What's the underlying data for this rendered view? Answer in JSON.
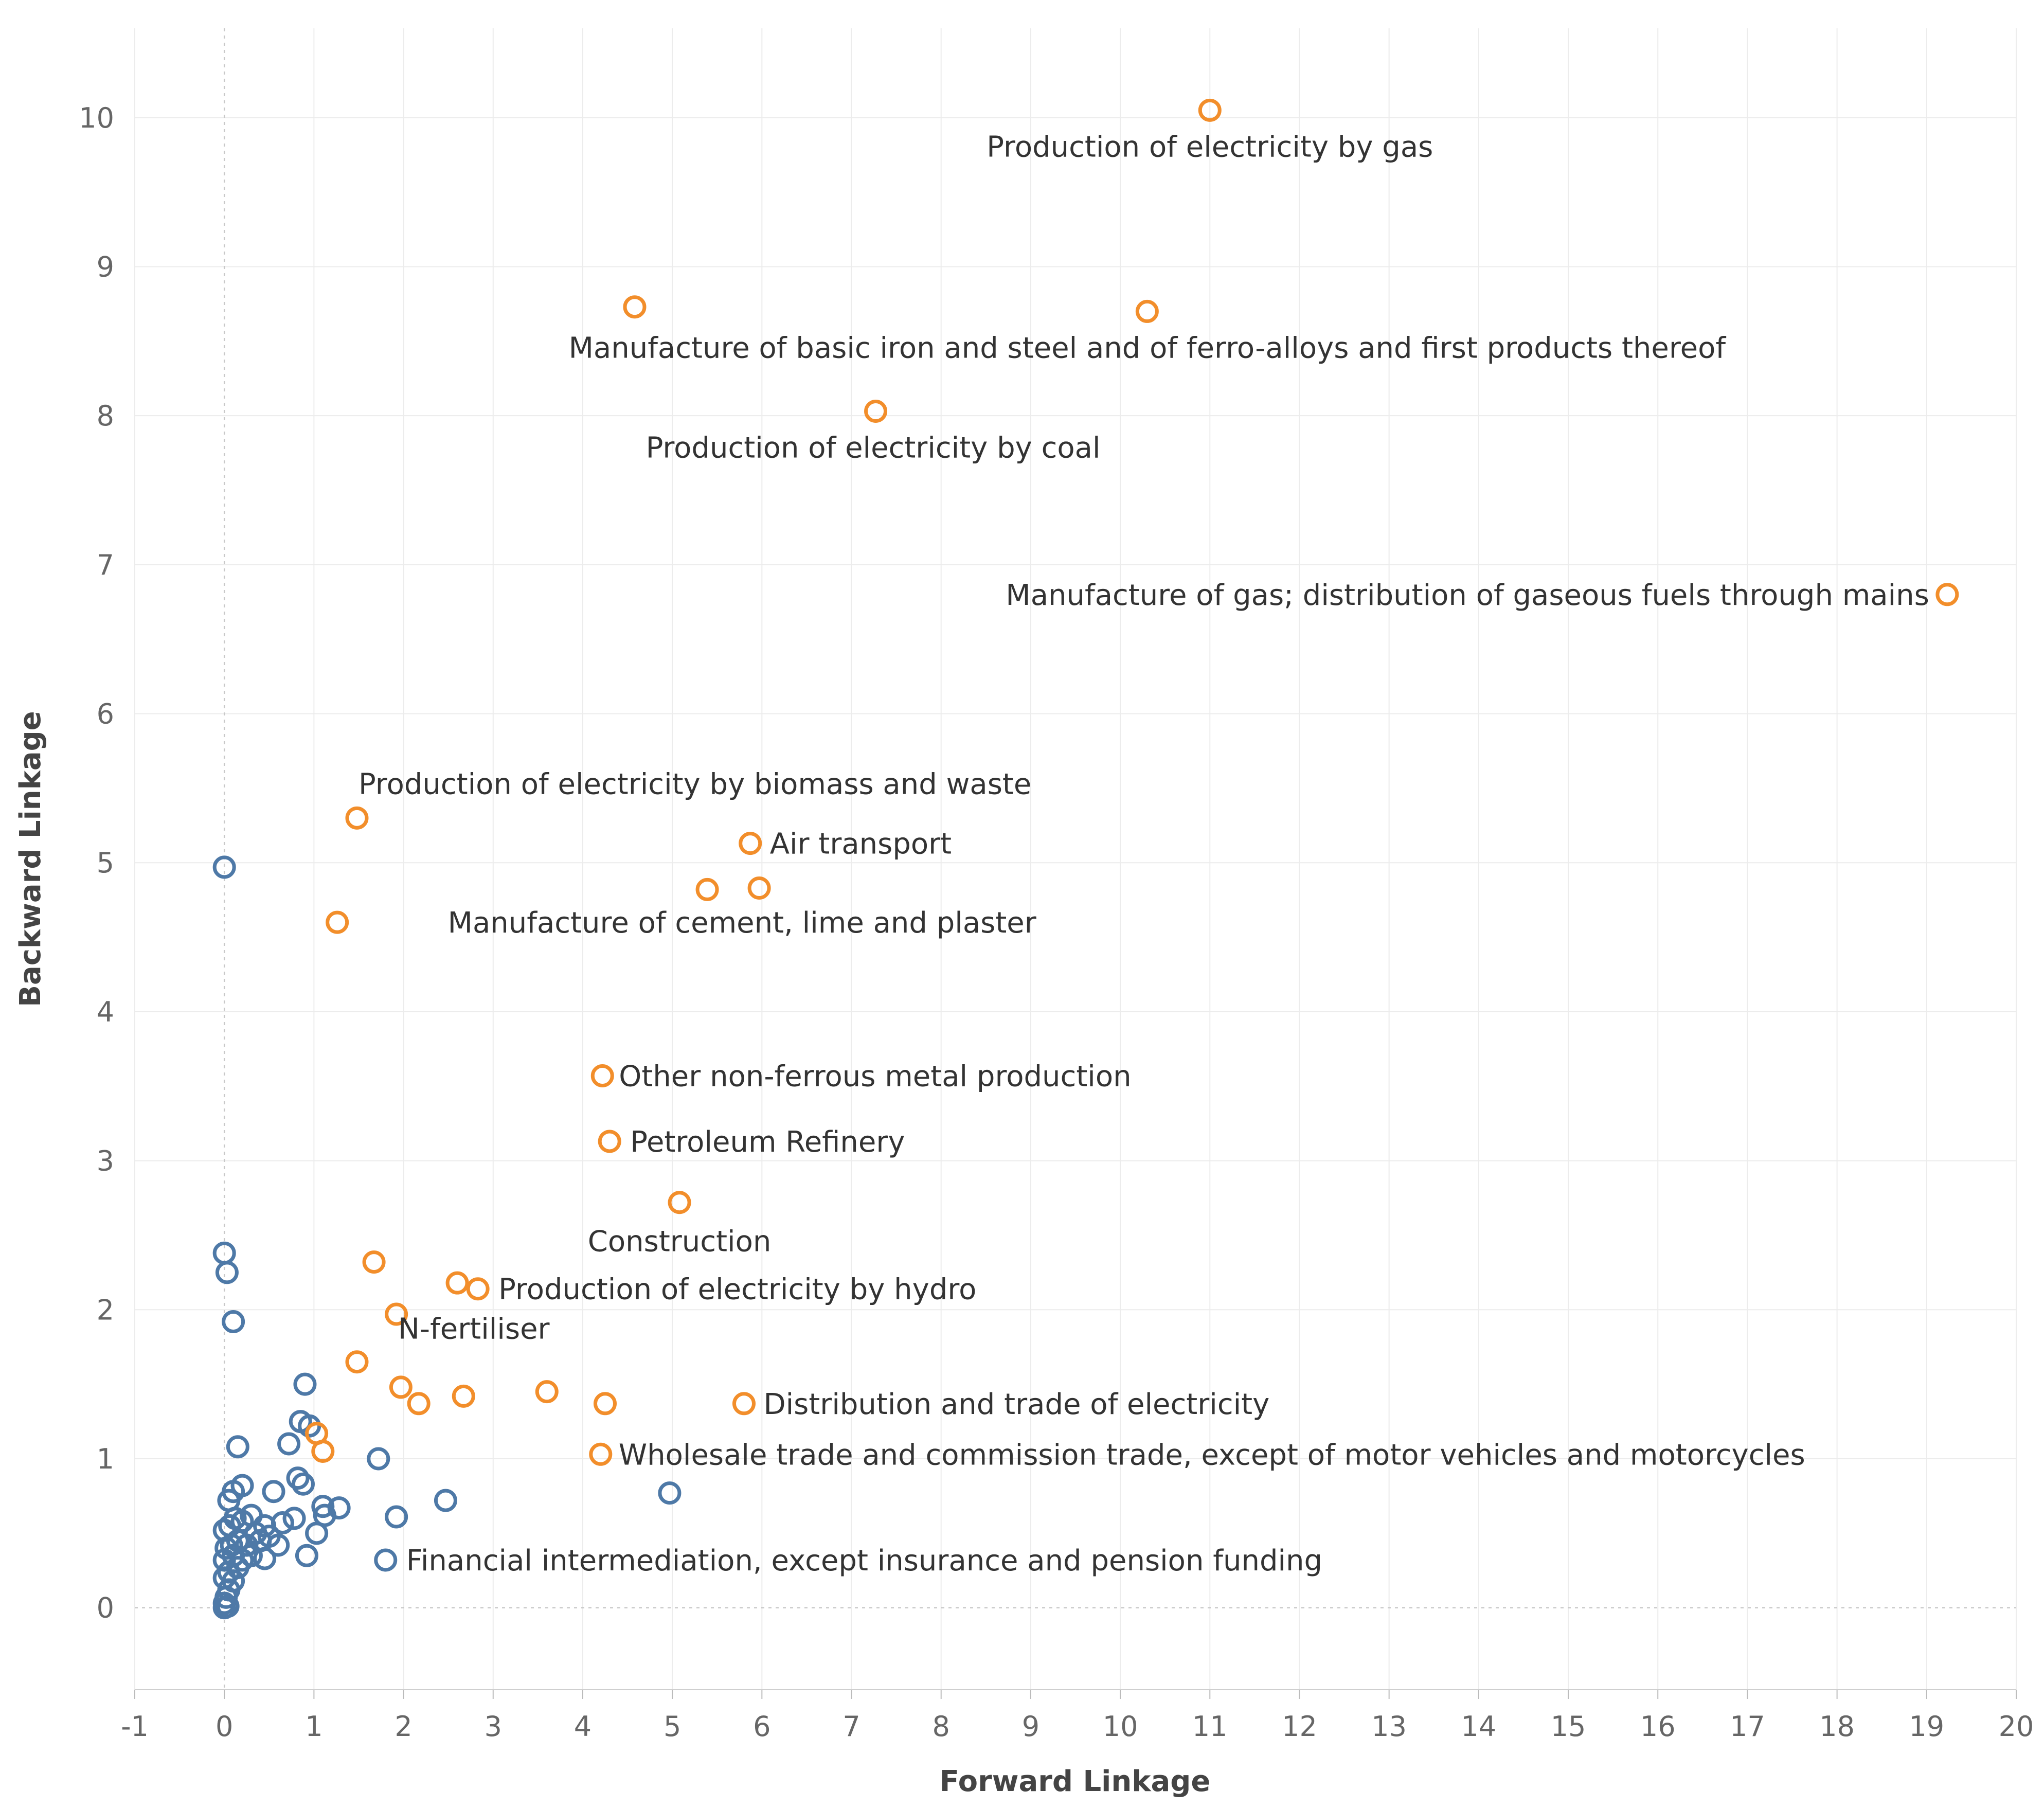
{
  "chart_data": {
    "type": "scatter",
    "title": "",
    "xlabel": "Forward Linkage",
    "ylabel": "Backward Linkage",
    "xlim": [
      -1,
      20
    ],
    "ylim": [
      -0.55,
      10.6
    ],
    "xticks": [
      -1,
      0,
      1,
      2,
      3,
      4,
      5,
      6,
      7,
      8,
      9,
      10,
      11,
      12,
      13,
      14,
      15,
      16,
      17,
      18,
      19,
      20
    ],
    "yticks": [
      0,
      1,
      2,
      3,
      4,
      5,
      6,
      7,
      8,
      9,
      10
    ],
    "grid": true,
    "colors": {
      "highlight": "#F28E2B",
      "other": "#4E79A7"
    },
    "series": [
      {
        "name": "highlighted",
        "color": "#F28E2B",
        "points": [
          {
            "x": 11.0,
            "y": 10.05,
            "label": "Production of electricity by gas"
          },
          {
            "x": 4.58,
            "y": 8.73,
            "label": ""
          },
          {
            "x": 10.3,
            "y": 8.7,
            "label": "Manufacture of basic iron and steel and of ferro-alloys and first products thereof"
          },
          {
            "x": 7.27,
            "y": 8.03,
            "label": "Production of electricity by coal"
          },
          {
            "x": 19.23,
            "y": 6.8,
            "label": "Manufacture of gas; distribution of gaseous fuels through mains"
          },
          {
            "x": 1.48,
            "y": 5.3,
            "label": "Production of electricity by biomass and waste"
          },
          {
            "x": 5.87,
            "y": 5.13,
            "label": "Air transport"
          },
          {
            "x": 5.39,
            "y": 4.82,
            "label": ""
          },
          {
            "x": 5.97,
            "y": 4.83,
            "label": ""
          },
          {
            "x": 1.26,
            "y": 4.6,
            "label": "Manufacture of cement, lime and plaster"
          },
          {
            "x": 4.22,
            "y": 3.57,
            "label": "Other non-ferrous metal production"
          },
          {
            "x": 4.3,
            "y": 3.13,
            "label": "Petroleum Refinery"
          },
          {
            "x": 5.08,
            "y": 2.72,
            "label": "Construction"
          },
          {
            "x": 1.67,
            "y": 2.32,
            "label": ""
          },
          {
            "x": 2.6,
            "y": 2.18,
            "label": ""
          },
          {
            "x": 2.83,
            "y": 2.14,
            "label": "Production of electricity by hydro"
          },
          {
            "x": 1.92,
            "y": 1.97,
            "label": ""
          },
          {
            "x": 1.48,
            "y": 1.65,
            "label": "N-fertiliser"
          },
          {
            "x": 1.97,
            "y": 1.48,
            "label": ""
          },
          {
            "x": 2.17,
            "y": 1.37,
            "label": ""
          },
          {
            "x": 2.67,
            "y": 1.42,
            "label": ""
          },
          {
            "x": 3.6,
            "y": 1.45,
            "label": ""
          },
          {
            "x": 4.25,
            "y": 1.37,
            "label": ""
          },
          {
            "x": 5.8,
            "y": 1.37,
            "label": "Distribution and trade of electricity"
          },
          {
            "x": 1.03,
            "y": 1.17,
            "label": ""
          },
          {
            "x": 1.1,
            "y": 1.05,
            "label": ""
          },
          {
            "x": 4.2,
            "y": 1.03,
            "label": "Wholesale trade and commission trade, except of motor vehicles and motorcycles"
          }
        ]
      },
      {
        "name": "other",
        "color": "#4E79A7",
        "points": [
          {
            "x": 0.0,
            "y": 4.97,
            "label": ""
          },
          {
            "x": 0.0,
            "y": 2.38,
            "label": ""
          },
          {
            "x": 0.03,
            "y": 2.25,
            "label": ""
          },
          {
            "x": 0.1,
            "y": 1.92,
            "label": ""
          },
          {
            "x": 0.9,
            "y": 1.5,
            "label": ""
          },
          {
            "x": 0.85,
            "y": 1.25,
            "label": ""
          },
          {
            "x": 0.95,
            "y": 1.22,
            "label": ""
          },
          {
            "x": 0.72,
            "y": 1.1,
            "label": ""
          },
          {
            "x": 0.15,
            "y": 1.08,
            "label": ""
          },
          {
            "x": 1.72,
            "y": 1.0,
            "label": ""
          },
          {
            "x": 4.97,
            "y": 0.77,
            "label": ""
          },
          {
            "x": 2.47,
            "y": 0.72,
            "label": ""
          },
          {
            "x": 0.82,
            "y": 0.87,
            "label": ""
          },
          {
            "x": 0.88,
            "y": 0.83,
            "label": ""
          },
          {
            "x": 0.55,
            "y": 0.78,
            "label": ""
          },
          {
            "x": 0.2,
            "y": 0.82,
            "label": ""
          },
          {
            "x": 0.1,
            "y": 0.78,
            "label": ""
          },
          {
            "x": 0.05,
            "y": 0.72,
            "label": ""
          },
          {
            "x": 1.1,
            "y": 0.68,
            "label": ""
          },
          {
            "x": 1.28,
            "y": 0.67,
            "label": ""
          },
          {
            "x": 1.12,
            "y": 0.62,
            "label": ""
          },
          {
            "x": 1.92,
            "y": 0.61,
            "label": ""
          },
          {
            "x": 0.78,
            "y": 0.6,
            "label": ""
          },
          {
            "x": 0.65,
            "y": 0.57,
            "label": ""
          },
          {
            "x": 0.45,
            "y": 0.55,
            "label": ""
          },
          {
            "x": 0.3,
            "y": 0.62,
            "label": ""
          },
          {
            "x": 0.2,
            "y": 0.58,
            "label": ""
          },
          {
            "x": 0.12,
            "y": 0.6,
            "label": ""
          },
          {
            "x": 0.06,
            "y": 0.55,
            "label": ""
          },
          {
            "x": 0.0,
            "y": 0.52,
            "label": ""
          },
          {
            "x": 0.35,
            "y": 0.5,
            "label": ""
          },
          {
            "x": 0.5,
            "y": 0.48,
            "label": ""
          },
          {
            "x": 1.03,
            "y": 0.5,
            "label": ""
          },
          {
            "x": 0.6,
            "y": 0.42,
            "label": ""
          },
          {
            "x": 0.4,
            "y": 0.45,
            "label": ""
          },
          {
            "x": 0.25,
            "y": 0.42,
            "label": ""
          },
          {
            "x": 0.15,
            "y": 0.45,
            "label": ""
          },
          {
            "x": 0.08,
            "y": 0.42,
            "label": ""
          },
          {
            "x": 0.02,
            "y": 0.4,
            "label": ""
          },
          {
            "x": 0.3,
            "y": 0.35,
            "label": ""
          },
          {
            "x": 0.45,
            "y": 0.33,
            "label": ""
          },
          {
            "x": 0.2,
            "y": 0.32,
            "label": ""
          },
          {
            "x": 0.1,
            "y": 0.35,
            "label": ""
          },
          {
            "x": 0.0,
            "y": 0.32,
            "label": ""
          },
          {
            "x": 0.92,
            "y": 0.35,
            "label": ""
          },
          {
            "x": 1.8,
            "y": 0.32,
            "label": "Financial intermediation, except insurance and pension funding"
          },
          {
            "x": 0.15,
            "y": 0.27,
            "label": ""
          },
          {
            "x": 0.05,
            "y": 0.24,
            "label": ""
          },
          {
            "x": 0.0,
            "y": 0.2,
            "label": ""
          },
          {
            "x": 0.1,
            "y": 0.18,
            "label": ""
          },
          {
            "x": 0.05,
            "y": 0.12,
            "label": ""
          },
          {
            "x": 0.02,
            "y": 0.07,
            "label": ""
          },
          {
            "x": 0.0,
            "y": 0.03,
            "label": ""
          },
          {
            "x": 0.04,
            "y": 0.01,
            "label": ""
          },
          {
            "x": 0.0,
            "y": 0.0,
            "label": ""
          }
        ]
      }
    ]
  }
}
